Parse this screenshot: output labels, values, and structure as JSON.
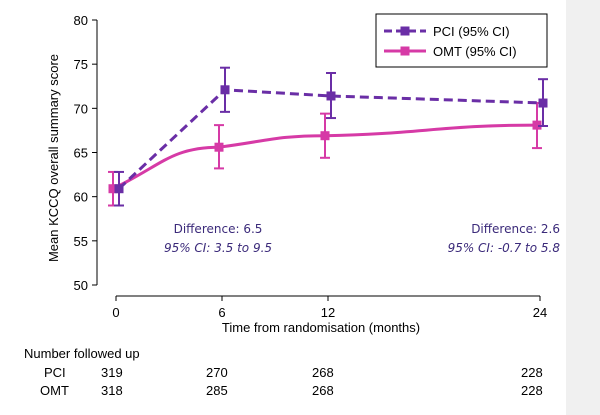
{
  "chart_data": {
    "type": "line",
    "ylabel": "Mean KCCQ overall summary score",
    "xlabel": "Time from randomisation (months)",
    "ylim": [
      50,
      80
    ],
    "yticks": [
      50,
      55,
      60,
      65,
      70,
      75,
      80
    ],
    "xticks": [
      0,
      6,
      12,
      24
    ],
    "grid": false,
    "legend_position": "top-right",
    "series": [
      {
        "name": "PCI (95% CI)",
        "color": "#6a2ea6",
        "line_style": "dashed",
        "marker": "square",
        "points": [
          {
            "x": 0,
            "y": 60.9,
            "lo": 59.0,
            "hi": 62.8
          },
          {
            "x": 6,
            "y": 72.1,
            "lo": 69.6,
            "hi": 74.6
          },
          {
            "x": 12,
            "y": 71.4,
            "lo": 68.9,
            "hi": 74.0
          },
          {
            "x": 24,
            "y": 70.6,
            "lo": 68.0,
            "hi": 73.3
          }
        ]
      },
      {
        "name": "OMT (95% CI)",
        "color": "#d63aa6",
        "line_style": "solid",
        "marker": "square",
        "points": [
          {
            "x": 0,
            "y": 60.9,
            "lo": 59.0,
            "hi": 62.8
          },
          {
            "x": 6,
            "y": 65.6,
            "lo": 63.2,
            "hi": 68.1
          },
          {
            "x": 12,
            "y": 66.9,
            "lo": 64.4,
            "hi": 69.4
          },
          {
            "x": 24,
            "y": 68.1,
            "lo": 65.5,
            "hi": 70.6
          }
        ]
      }
    ],
    "annotations": [
      {
        "text": "Difference: 6.5",
        "ci": "95% CI: 3.5 to 9.5"
      },
      {
        "text": "Difference: 2.6",
        "ci": "95% CI: -0.7 to 5.8"
      }
    ]
  },
  "followup": {
    "title": "Number followed up",
    "rows": [
      {
        "label": "PCI",
        "values": [
          "319",
          "270",
          "268",
          "228"
        ]
      },
      {
        "label": "OMT",
        "values": [
          "318",
          "285",
          "268",
          "228"
        ]
      }
    ]
  }
}
